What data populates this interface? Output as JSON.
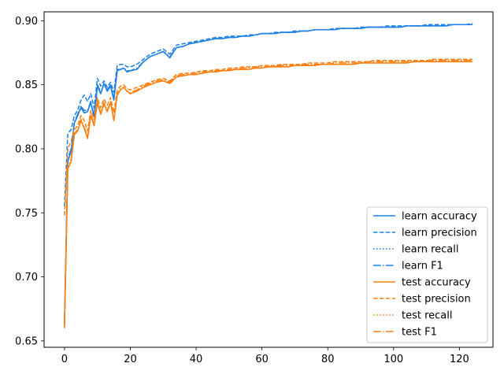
{
  "chart_data": {
    "type": "line",
    "title": "",
    "xlabel": "",
    "ylabel": "",
    "xlim": [
      -6.2,
      130.2
    ],
    "ylim": [
      0.645,
      0.907
    ],
    "xticks": [
      0,
      20,
      40,
      60,
      80,
      100,
      120
    ],
    "yticks": [
      0.65,
      0.7,
      0.75,
      0.8,
      0.85,
      0.9
    ],
    "ytick_labels": [
      "0.65",
      "0.70",
      "0.75",
      "0.80",
      "0.85",
      "0.90"
    ],
    "grid": false,
    "legend_position": "lower-right",
    "colors": {
      "learn": "#1a80e8",
      "test": "#ff7f0e"
    },
    "x": [
      0,
      1,
      2,
      3,
      4,
      5,
      6,
      7,
      8,
      9,
      10,
      11,
      12,
      13,
      14,
      15,
      16,
      17,
      18,
      19,
      20,
      22,
      24,
      26,
      28,
      30,
      32,
      34,
      36,
      38,
      40,
      42,
      44,
      46,
      48,
      50,
      52,
      54,
      56,
      58,
      60,
      62,
      64,
      66,
      68,
      70,
      72,
      74,
      76,
      78,
      80,
      82,
      84,
      86,
      88,
      90,
      92,
      94,
      96,
      98,
      100,
      102,
      104,
      106,
      108,
      110,
      112,
      114,
      116,
      118,
      120,
      122,
      124
    ],
    "series": [
      {
        "name": "learn accuracy",
        "group": "learn",
        "style": "solid",
        "values": [
          0.662,
          0.79,
          0.798,
          0.82,
          0.826,
          0.832,
          0.828,
          0.829,
          0.836,
          0.825,
          0.849,
          0.843,
          0.851,
          0.845,
          0.849,
          0.838,
          0.861,
          0.862,
          0.863,
          0.86,
          0.861,
          0.862,
          0.868,
          0.872,
          0.874,
          0.876,
          0.871,
          0.879,
          0.88,
          0.882,
          0.883,
          0.884,
          0.885,
          0.886,
          0.886,
          0.887,
          0.887,
          0.888,
          0.888,
          0.889,
          0.89,
          0.89,
          0.89,
          0.891,
          0.891,
          0.891,
          0.892,
          0.892,
          0.893,
          0.893,
          0.893,
          0.893,
          0.894,
          0.894,
          0.894,
          0.894,
          0.895,
          0.895,
          0.895,
          0.895,
          0.895,
          0.895,
          0.896,
          0.896,
          0.896,
          0.896,
          0.896,
          0.896,
          0.896,
          0.897,
          0.897,
          0.897,
          0.897
        ]
      },
      {
        "name": "learn precision",
        "group": "learn",
        "style": "dashed",
        "values": [
          0.755,
          0.812,
          0.815,
          0.826,
          0.83,
          0.838,
          0.842,
          0.837,
          0.843,
          0.832,
          0.855,
          0.849,
          0.853,
          0.848,
          0.852,
          0.844,
          0.865,
          0.866,
          0.866,
          0.864,
          0.864,
          0.866,
          0.87,
          0.874,
          0.876,
          0.878,
          0.874,
          0.881,
          0.882,
          0.883,
          0.884,
          0.885,
          0.886,
          0.887,
          0.887,
          0.888,
          0.888,
          0.888,
          0.889,
          0.889,
          0.89,
          0.89,
          0.891,
          0.891,
          0.891,
          0.892,
          0.892,
          0.892,
          0.893,
          0.893,
          0.893,
          0.894,
          0.894,
          0.894,
          0.894,
          0.895,
          0.895,
          0.895,
          0.895,
          0.896,
          0.896,
          0.896,
          0.896,
          0.896,
          0.896,
          0.897,
          0.897,
          0.897,
          0.897,
          0.897,
          0.897,
          0.897,
          0.898
        ]
      },
      {
        "name": "learn recall",
        "group": "learn",
        "style": "dotted",
        "values": [
          0.662,
          0.79,
          0.798,
          0.82,
          0.826,
          0.832,
          0.828,
          0.829,
          0.836,
          0.825,
          0.849,
          0.843,
          0.851,
          0.845,
          0.849,
          0.838,
          0.861,
          0.862,
          0.863,
          0.86,
          0.861,
          0.862,
          0.868,
          0.872,
          0.874,
          0.876,
          0.871,
          0.879,
          0.88,
          0.882,
          0.883,
          0.884,
          0.885,
          0.886,
          0.886,
          0.887,
          0.887,
          0.888,
          0.888,
          0.889,
          0.89,
          0.89,
          0.89,
          0.891,
          0.891,
          0.891,
          0.892,
          0.892,
          0.893,
          0.893,
          0.893,
          0.893,
          0.894,
          0.894,
          0.894,
          0.894,
          0.895,
          0.895,
          0.895,
          0.895,
          0.895,
          0.895,
          0.896,
          0.896,
          0.896,
          0.896,
          0.896,
          0.896,
          0.896,
          0.897,
          0.897,
          0.897,
          0.897
        ]
      },
      {
        "name": "learn F1",
        "group": "learn",
        "style": "dashdot",
        "values": [
          0.668,
          0.792,
          0.8,
          0.821,
          0.827,
          0.833,
          0.83,
          0.83,
          0.837,
          0.826,
          0.85,
          0.844,
          0.851,
          0.846,
          0.85,
          0.839,
          0.862,
          0.862,
          0.863,
          0.861,
          0.861,
          0.863,
          0.868,
          0.872,
          0.874,
          0.876,
          0.872,
          0.879,
          0.88,
          0.882,
          0.883,
          0.884,
          0.885,
          0.886,
          0.886,
          0.887,
          0.887,
          0.888,
          0.888,
          0.889,
          0.89,
          0.89,
          0.89,
          0.891,
          0.891,
          0.891,
          0.892,
          0.892,
          0.893,
          0.893,
          0.893,
          0.893,
          0.894,
          0.894,
          0.894,
          0.894,
          0.895,
          0.895,
          0.895,
          0.895,
          0.895,
          0.895,
          0.896,
          0.896,
          0.896,
          0.896,
          0.896,
          0.896,
          0.896,
          0.897,
          0.897,
          0.897,
          0.897
        ]
      },
      {
        "name": "test accuracy",
        "group": "test",
        "style": "solid",
        "values": [
          0.66,
          0.784,
          0.79,
          0.811,
          0.814,
          0.822,
          0.816,
          0.808,
          0.826,
          0.818,
          0.836,
          0.827,
          0.835,
          0.829,
          0.836,
          0.822,
          0.842,
          0.846,
          0.848,
          0.845,
          0.843,
          0.845,
          0.848,
          0.85,
          0.852,
          0.853,
          0.851,
          0.856,
          0.857,
          0.858,
          0.858,
          0.859,
          0.86,
          0.86,
          0.861,
          0.861,
          0.862,
          0.862,
          0.862,
          0.863,
          0.863,
          0.864,
          0.864,
          0.864,
          0.864,
          0.865,
          0.865,
          0.865,
          0.865,
          0.866,
          0.866,
          0.866,
          0.866,
          0.866,
          0.866,
          0.867,
          0.867,
          0.867,
          0.867,
          0.867,
          0.867,
          0.867,
          0.867,
          0.868,
          0.868,
          0.868,
          0.868,
          0.868,
          0.868,
          0.868,
          0.868,
          0.868,
          0.868
        ]
      },
      {
        "name": "test precision",
        "group": "test",
        "style": "dashed",
        "values": [
          0.748,
          0.8,
          0.806,
          0.815,
          0.818,
          0.826,
          0.822,
          0.814,
          0.83,
          0.823,
          0.84,
          0.832,
          0.839,
          0.834,
          0.84,
          0.828,
          0.846,
          0.849,
          0.85,
          0.847,
          0.846,
          0.848,
          0.85,
          0.852,
          0.854,
          0.855,
          0.853,
          0.858,
          0.859,
          0.859,
          0.86,
          0.861,
          0.861,
          0.862,
          0.862,
          0.863,
          0.863,
          0.864,
          0.864,
          0.864,
          0.865,
          0.865,
          0.865,
          0.866,
          0.866,
          0.866,
          0.866,
          0.867,
          0.867,
          0.867,
          0.867,
          0.868,
          0.868,
          0.868,
          0.868,
          0.868,
          0.868,
          0.869,
          0.869,
          0.869,
          0.869,
          0.869,
          0.869,
          0.869,
          0.869,
          0.869,
          0.87,
          0.87,
          0.87,
          0.87,
          0.87,
          0.87,
          0.87
        ]
      },
      {
        "name": "test recall",
        "group": "test",
        "style": "dotted",
        "values": [
          0.66,
          0.784,
          0.79,
          0.811,
          0.814,
          0.822,
          0.816,
          0.808,
          0.826,
          0.818,
          0.836,
          0.827,
          0.835,
          0.829,
          0.836,
          0.822,
          0.842,
          0.846,
          0.848,
          0.845,
          0.843,
          0.845,
          0.848,
          0.85,
          0.852,
          0.853,
          0.851,
          0.856,
          0.857,
          0.858,
          0.858,
          0.859,
          0.86,
          0.86,
          0.861,
          0.861,
          0.862,
          0.862,
          0.862,
          0.863,
          0.863,
          0.864,
          0.864,
          0.864,
          0.864,
          0.865,
          0.865,
          0.865,
          0.865,
          0.866,
          0.866,
          0.866,
          0.866,
          0.866,
          0.866,
          0.867,
          0.867,
          0.867,
          0.867,
          0.867,
          0.867,
          0.867,
          0.867,
          0.868,
          0.868,
          0.868,
          0.868,
          0.868,
          0.868,
          0.868,
          0.868,
          0.868,
          0.868
        ]
      },
      {
        "name": "test F1",
        "group": "test",
        "style": "dashdot",
        "values": [
          0.664,
          0.786,
          0.792,
          0.812,
          0.815,
          0.823,
          0.817,
          0.809,
          0.827,
          0.819,
          0.837,
          0.828,
          0.836,
          0.83,
          0.837,
          0.823,
          0.843,
          0.847,
          0.848,
          0.845,
          0.844,
          0.846,
          0.849,
          0.851,
          0.853,
          0.854,
          0.852,
          0.857,
          0.858,
          0.858,
          0.859,
          0.86,
          0.86,
          0.861,
          0.861,
          0.862,
          0.862,
          0.863,
          0.863,
          0.864,
          0.864,
          0.864,
          0.865,
          0.865,
          0.865,
          0.865,
          0.866,
          0.866,
          0.866,
          0.866,
          0.866,
          0.867,
          0.867,
          0.867,
          0.867,
          0.867,
          0.868,
          0.868,
          0.868,
          0.868,
          0.868,
          0.868,
          0.868,
          0.868,
          0.868,
          0.869,
          0.869,
          0.869,
          0.869,
          0.869,
          0.869,
          0.869,
          0.869
        ]
      }
    ]
  }
}
